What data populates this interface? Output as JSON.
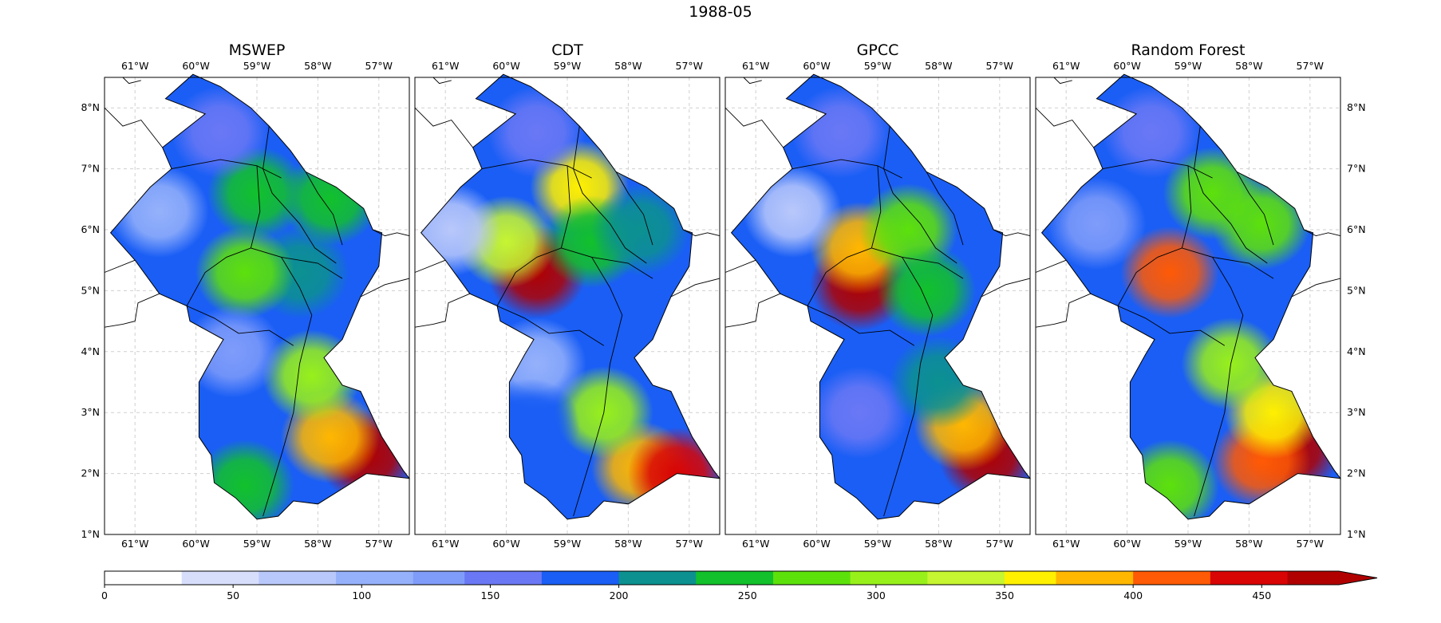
{
  "figure": {
    "title": "1988-05"
  },
  "chart_data": {
    "type": "heatmap",
    "title": "1988-05",
    "panels": [
      {
        "title": "MSWEP",
        "blobs": [
          {
            "lon": -57.2,
            "lat": 2.3,
            "value": 470
          },
          {
            "lon": -57.8,
            "lat": 2.6,
            "value": 390
          },
          {
            "lon": -58.1,
            "lat": 3.6,
            "value": 300
          },
          {
            "lon": -58.3,
            "lat": 5.3,
            "value": 200
          },
          {
            "lon": -59.2,
            "lat": 5.3,
            "value": 260
          },
          {
            "lon": -59.0,
            "lat": 6.6,
            "value": 230
          },
          {
            "lon": -57.8,
            "lat": 6.5,
            "value": 250
          },
          {
            "lon": -60.6,
            "lat": 6.3,
            "value": 90
          },
          {
            "lon": -59.6,
            "lat": 7.6,
            "value": 150
          },
          {
            "lon": -59.5,
            "lat": 3.0,
            "value": 170
          },
          {
            "lon": -59.4,
            "lat": 4.0,
            "value": 130
          },
          {
            "lon": -59.2,
            "lat": 1.8,
            "value": 240
          }
        ]
      },
      {
        "title": "CDT",
        "blobs": [
          {
            "lon": -59.5,
            "lat": 5.3,
            "value": 470
          },
          {
            "lon": -60.0,
            "lat": 5.8,
            "value": 320
          },
          {
            "lon": -58.8,
            "lat": 6.7,
            "value": 360
          },
          {
            "lon": -57.8,
            "lat": 2.1,
            "value": 380
          },
          {
            "lon": -57.2,
            "lat": 2.0,
            "value": 450
          },
          {
            "lon": -58.4,
            "lat": 3.0,
            "value": 290
          },
          {
            "lon": -60.9,
            "lat": 6.0,
            "value": 60
          },
          {
            "lon": -59.5,
            "lat": 3.8,
            "value": 110
          },
          {
            "lon": -59.5,
            "lat": 7.6,
            "value": 140
          },
          {
            "lon": -58.6,
            "lat": 5.8,
            "value": 250
          },
          {
            "lon": -59.6,
            "lat": 2.8,
            "value": 190
          },
          {
            "lon": -57.8,
            "lat": 6.0,
            "value": 200
          }
        ]
      },
      {
        "title": "GPCC",
        "blobs": [
          {
            "lon": -59.3,
            "lat": 5.1,
            "value": 480
          },
          {
            "lon": -59.3,
            "lat": 5.7,
            "value": 380
          },
          {
            "lon": -57.2,
            "lat": 2.3,
            "value": 480
          },
          {
            "lon": -57.6,
            "lat": 2.8,
            "value": 370
          },
          {
            "lon": -58.5,
            "lat": 6.0,
            "value": 280
          },
          {
            "lon": -58.2,
            "lat": 5.0,
            "value": 250
          },
          {
            "lon": -60.4,
            "lat": 6.3,
            "value": 80
          },
          {
            "lon": -59.3,
            "lat": 3.0,
            "value": 150
          },
          {
            "lon": -59.6,
            "lat": 7.6,
            "value": 150
          },
          {
            "lon": -58.0,
            "lat": 3.5,
            "value": 210
          }
        ]
      },
      {
        "title": "Random Forest",
        "blobs": [
          {
            "lon": -59.3,
            "lat": 5.3,
            "value": 420
          },
          {
            "lon": -57.3,
            "lat": 2.4,
            "value": 460
          },
          {
            "lon": -57.8,
            "lat": 2.2,
            "value": 420
          },
          {
            "lon": -57.6,
            "lat": 3.0,
            "value": 360
          },
          {
            "lon": -58.3,
            "lat": 3.8,
            "value": 300
          },
          {
            "lon": -58.6,
            "lat": 6.6,
            "value": 280
          },
          {
            "lon": -57.8,
            "lat": 6.1,
            "value": 270
          },
          {
            "lon": -60.5,
            "lat": 6.1,
            "value": 130
          },
          {
            "lon": -59.6,
            "lat": 7.6,
            "value": 150
          },
          {
            "lon": -59.5,
            "lat": 3.0,
            "value": 180
          },
          {
            "lon": -59.3,
            "lat": 1.8,
            "value": 260
          }
        ]
      }
    ],
    "lon_ticks": [
      "61°W",
      "60°W",
      "59°W",
      "58°W",
      "57°W"
    ],
    "lat_ticks": [
      "1°N",
      "2°N",
      "3°N",
      "4°N",
      "5°N",
      "6°N",
      "7°N",
      "8°N"
    ],
    "xlim": [
      -61.5,
      -56.5
    ],
    "ylim": [
      1.0,
      8.5
    ],
    "grid": true,
    "colorbar": {
      "ticks": [
        "0",
        "50",
        "100",
        "150",
        "200",
        "250",
        "300",
        "350",
        "400",
        "450"
      ],
      "range": [
        0,
        480
      ],
      "extend": "max",
      "levels": [
        0,
        30,
        60,
        90,
        120,
        140,
        170,
        200,
        230,
        260,
        290,
        320,
        350,
        370,
        400,
        430,
        460,
        480
      ],
      "colors": [
        "#ffffff",
        "#d7defc",
        "#b9c8fb",
        "#95b1fb",
        "#7f9cfa",
        "#6a78f5",
        "#1a5ef5",
        "#0c9190",
        "#12c12b",
        "#5de10b",
        "#98f01a",
        "#c6f531",
        "#fff000",
        "#ffb700",
        "#ff5a05",
        "#d90404",
        "#b00000"
      ]
    }
  }
}
